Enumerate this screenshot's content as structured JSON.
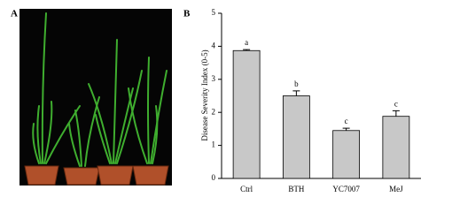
{
  "figure": {
    "panel_a_label": "A"
  },
  "chart_data": {
    "type": "bar",
    "panel_label": "B",
    "ylabel": "Disease Severity Index (0-5)",
    "categories": [
      "Ctrl",
      "BTH",
      "YC7007",
      "MeJ"
    ],
    "values": [
      3.87,
      2.5,
      1.45,
      1.88
    ],
    "errors": [
      0.03,
      0.15,
      0.07,
      0.17
    ],
    "annotations": [
      "a",
      "b",
      "c",
      "c"
    ],
    "color": "#c8c8c8",
    "ylim": [
      0,
      5
    ],
    "yticks": [
      0,
      1,
      2,
      3,
      4,
      5
    ],
    "grid": false
  }
}
